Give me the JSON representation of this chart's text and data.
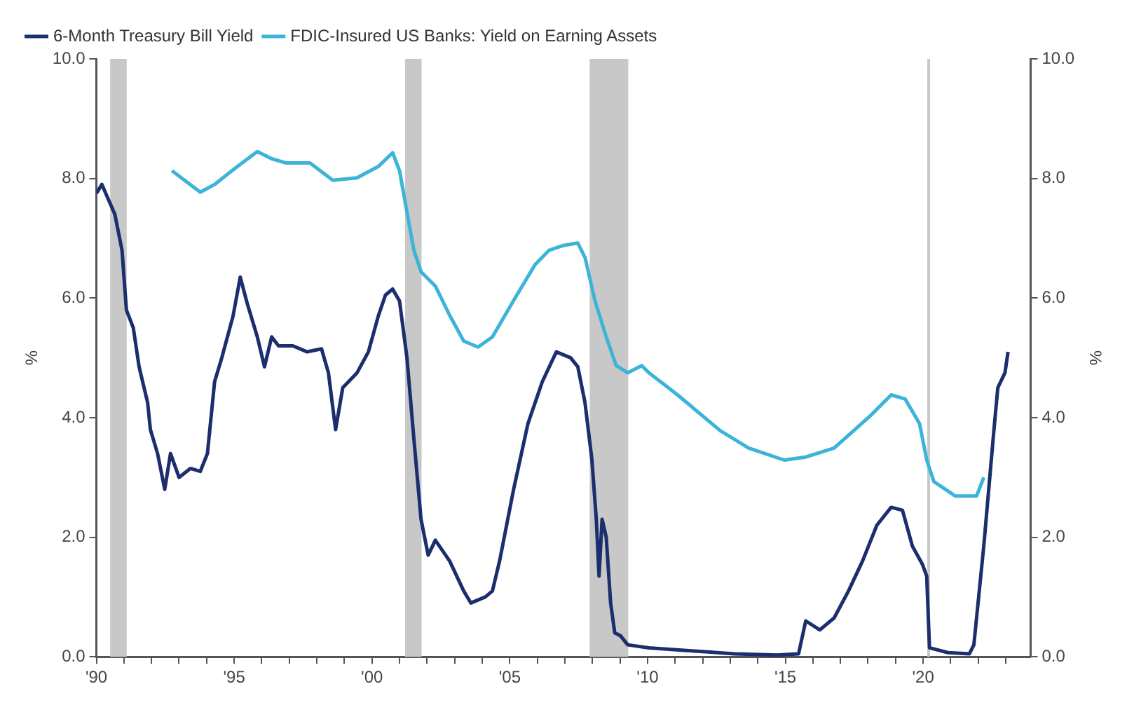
{
  "chart_data": {
    "type": "line",
    "ylabel": "%",
    "y2label": "%",
    "legend": "top left",
    "grid": false,
    "xlim": [
      1990,
      2023.9
    ],
    "xticks": [
      {
        "value": 1990,
        "label": "'90"
      },
      {
        "value": 1991,
        "label": null
      },
      {
        "value": 1992,
        "label": null
      },
      {
        "value": 1993,
        "label": null
      },
      {
        "value": 1994,
        "label": null
      },
      {
        "value": 1995,
        "label": "'95"
      },
      {
        "value": 1996,
        "label": null
      },
      {
        "value": 1997,
        "label": null
      },
      {
        "value": 1998,
        "label": null
      },
      {
        "value": 1999,
        "label": null
      },
      {
        "value": 2000,
        "label": "'00"
      },
      {
        "value": 2001,
        "label": null
      },
      {
        "value": 2002,
        "label": null
      },
      {
        "value": 2003,
        "label": null
      },
      {
        "value": 2004,
        "label": null
      },
      {
        "value": 2005,
        "label": "'05"
      },
      {
        "value": 2006,
        "label": null
      },
      {
        "value": 2007,
        "label": null
      },
      {
        "value": 2008,
        "label": null
      },
      {
        "value": 2009,
        "label": null
      },
      {
        "value": 2010,
        "label": "'10"
      },
      {
        "value": 2011,
        "label": null
      },
      {
        "value": 2012,
        "label": null
      },
      {
        "value": 2013,
        "label": null
      },
      {
        "value": 2014,
        "label": null
      },
      {
        "value": 2015,
        "label": "'15"
      },
      {
        "value": 2016,
        "label": null
      },
      {
        "value": 2017,
        "label": null
      },
      {
        "value": 2018,
        "label": null
      },
      {
        "value": 2019,
        "label": null
      },
      {
        "value": 2020,
        "label": "'20"
      },
      {
        "value": 2021,
        "label": null
      },
      {
        "value": 2022,
        "label": null
      },
      {
        "value": 2023,
        "label": null
      }
    ],
    "ylim": [
      0,
      10
    ],
    "yticks": [
      {
        "value": 0,
        "label": "0.0"
      },
      {
        "value": 2,
        "label": "2.0"
      },
      {
        "value": 4,
        "label": "4.0"
      },
      {
        "value": 6,
        "label": "6.0"
      },
      {
        "value": 8,
        "label": "8.0"
      },
      {
        "value": 10,
        "label": "10.0"
      }
    ],
    "y2lim": [
      0,
      10
    ],
    "y2ticks": [
      {
        "value": 0,
        "label": "0.0"
      },
      {
        "value": 2,
        "label": "2.0"
      },
      {
        "value": 4,
        "label": "4.0"
      },
      {
        "value": 6,
        "label": "6.0"
      },
      {
        "value": 8,
        "label": "8.0"
      },
      {
        "value": 10,
        "label": "10.0"
      }
    ],
    "bands": [
      {
        "axis": "x",
        "from": 1990.5,
        "to": 1991.1,
        "color": "#c8c8c8"
      },
      {
        "axis": "x",
        "from": 2001.2,
        "to": 2001.8,
        "color": "#c8c8c8"
      },
      {
        "axis": "x",
        "from": 2007.9,
        "to": 2009.3,
        "color": "#c8c8c8"
      },
      {
        "axis": "x",
        "from": 2020.15,
        "to": 2020.25,
        "color": "#c8c8c8"
      }
    ],
    "series": [
      {
        "name": "6-Month Treasury Bill Yield",
        "color": "#1c2e6e",
        "x": [
          1990.0,
          1990.2,
          1990.67,
          1990.93,
          1991.09,
          1991.34,
          1991.55,
          1991.86,
          1991.96,
          1992.22,
          1992.48,
          1992.69,
          1993.0,
          1993.41,
          1993.77,
          1994.03,
          1994.29,
          1994.55,
          1994.96,
          1995.22,
          1995.48,
          1995.84,
          1996.1,
          1996.36,
          1996.61,
          1997.13,
          1997.65,
          1998.17,
          1998.42,
          1998.68,
          1998.94,
          1999.46,
          1999.87,
          2000.23,
          2000.49,
          2000.75,
          2001.0,
          2001.27,
          2001.52,
          2001.78,
          2002.04,
          2002.3,
          2002.82,
          2003.33,
          2003.59,
          2004.11,
          2004.37,
          2004.63,
          2005.14,
          2005.66,
          2006.18,
          2006.69,
          2007.21,
          2007.47,
          2007.73,
          2007.98,
          2008.14,
          2008.24,
          2008.35,
          2008.5,
          2008.66,
          2008.81,
          2009.02,
          2009.28,
          2010.05,
          2011.6,
          2013.15,
          2014.7,
          2015.48,
          2015.74,
          2016.25,
          2016.77,
          2017.29,
          2017.8,
          2018.32,
          2018.84,
          2019.25,
          2019.61,
          2019.97,
          2020.13,
          2020.23,
          2020.9,
          2021.68,
          2021.84,
          2022.2,
          2022.56,
          2022.71,
          2022.97,
          2023.08
        ],
        "values": [
          7.75,
          7.9,
          7.4,
          6.8,
          5.8,
          5.5,
          4.85,
          4.25,
          3.8,
          3.4,
          2.8,
          3.4,
          3.0,
          3.15,
          3.1,
          3.4,
          4.6,
          5.0,
          5.7,
          6.35,
          5.9,
          5.35,
          4.85,
          5.35,
          5.2,
          5.2,
          5.1,
          5.15,
          4.75,
          3.8,
          4.5,
          4.75,
          5.1,
          5.7,
          6.05,
          6.15,
          5.95,
          5.0,
          3.65,
          2.3,
          1.7,
          1.95,
          1.6,
          1.1,
          0.9,
          1.0,
          1.1,
          1.6,
          2.8,
          3.9,
          4.6,
          5.1,
          5.0,
          4.85,
          4.25,
          3.3,
          2.3,
          1.35,
          2.3,
          2.0,
          0.9,
          0.4,
          0.35,
          0.2,
          0.15,
          0.1,
          0.05,
          0.03,
          0.05,
          0.6,
          0.45,
          0.65,
          1.1,
          1.6,
          2.2,
          2.5,
          2.45,
          1.85,
          1.55,
          1.35,
          0.15,
          0.07,
          0.05,
          0.2,
          1.85,
          3.75,
          4.5,
          4.75,
          5.1
        ]
      },
      {
        "name": "FDIC-Insured US Banks: Yield on Earning Assets",
        "color": "#3cb4d8",
        "x": [
          1992.74,
          1993.77,
          1994.29,
          1995.06,
          1995.84,
          1996.36,
          1996.87,
          1997.75,
          1998.58,
          1999.46,
          2000.23,
          2000.75,
          2001.0,
          2001.52,
          2001.78,
          2002.3,
          2002.82,
          2003.33,
          2003.85,
          2004.37,
          2005.14,
          2005.92,
          2006.43,
          2006.95,
          2007.47,
          2007.73,
          2008.09,
          2008.5,
          2008.86,
          2009.28,
          2009.79,
          2010.05,
          2011.09,
          2012.64,
          2013.67,
          2014.96,
          2015.74,
          2016.77,
          2018.06,
          2018.84,
          2019.35,
          2019.87,
          2020.13,
          2020.39,
          2021.16,
          2021.94,
          2022.2
        ],
        "values": [
          8.13,
          7.77,
          7.9,
          8.18,
          8.45,
          8.33,
          8.26,
          8.26,
          7.97,
          8.01,
          8.2,
          8.43,
          8.13,
          6.8,
          6.44,
          6.2,
          5.71,
          5.28,
          5.18,
          5.35,
          5.96,
          6.56,
          6.8,
          6.88,
          6.92,
          6.68,
          5.96,
          5.35,
          4.87,
          4.75,
          4.87,
          4.75,
          4.38,
          3.78,
          3.49,
          3.29,
          3.34,
          3.49,
          4.02,
          4.38,
          4.31,
          3.9,
          3.29,
          2.93,
          2.69,
          2.69,
          3.0
        ]
      }
    ]
  }
}
